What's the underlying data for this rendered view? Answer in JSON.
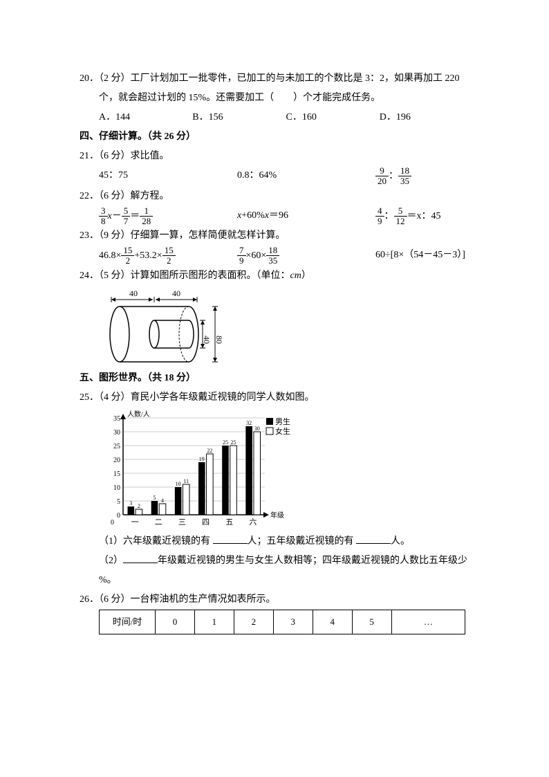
{
  "q20": {
    "num": "20",
    "line1": "．（2 分）工厂计划加工一批零件，已加工的与未加工的个数比是 3：2，如果再加工 220",
    "line2": "个，就会超过计划的 15%。还需要加工（　　）个才能完成任务。",
    "optA": "A．144",
    "optB": "B．156",
    "optC": "C．160",
    "optD": "D．196"
  },
  "sec4": "四、仔细计算。（共 26 分）",
  "q21": {
    "head": "21．（6 分）求比值。",
    "a": "45：75",
    "b": "0.8：64%",
    "c_left_n": "9",
    "c_left_d": "20",
    "c_right_n": "18",
    "c_right_d": "35"
  },
  "q22": {
    "head": "22．（6 分）解方程。",
    "a_l_n": "3",
    "a_l_d": "8",
    "a_m_n": "5",
    "a_m_d": "7",
    "a_r_n": "1",
    "a_r_d": "28",
    "b": "x+60%x＝96",
    "c_l_n": "4",
    "c_l_d": "9",
    "c_r_n": "5",
    "c_r_d": "12",
    "c_tail": "＝x：45"
  },
  "q23": {
    "head": "23．（9 分）仔细算一算，怎样简便就怎样计算。",
    "a_pre": "46.8×",
    "a1n": "15",
    "a1d": "2",
    "a_mid": "+53.2×",
    "a2n": "15",
    "a2d": "2",
    "b1n": "7",
    "b1d": "9",
    "b_mid": "×60×",
    "b2n": "18",
    "b2d": "35",
    "c": "60÷[8×（54－45－3）]"
  },
  "q24": {
    "head": "24．（5 分）计算如图所示图形的表面积。（单位：",
    "unit": "cm",
    "tail": "）",
    "dims": {
      "d1": "40",
      "d2": "40",
      "h1": "40",
      "h2": "80"
    }
  },
  "sec5": "五、图形世界。（共 18 分）",
  "q25": {
    "head": "25．（4 分）育民小学各年级戴近视镜的同学人数如图。",
    "chart": {
      "ylabel": "人数/人",
      "xlabel": "年级",
      "legend_boy": "男生",
      "legend_girl": "女生",
      "categories": [
        "一",
        "二",
        "三",
        "四",
        "五",
        "六"
      ],
      "boys": [
        3,
        5,
        10,
        19,
        25,
        32
      ],
      "girls": [
        2,
        4,
        11,
        22,
        25,
        30
      ],
      "ymax": 35,
      "ystep": 5,
      "bar_boy_color": "#000000",
      "bar_girl_color": "#ffffff",
      "grid_color": "#cccccc"
    },
    "sub1": "（1）六年级戴近视镜的有 ",
    "sub1b": "人；五年级戴近视镜的有 ",
    "sub1c": "人。",
    "sub2a": "（2）",
    "sub2b": "年级戴近视镜的男生与女生人数相等；四年级戴近视镜的人数比五年级少",
    "sub2c": "%。"
  },
  "q26": {
    "head": "26．（6 分）一台榨油机的生产情况如表所示。",
    "headers": [
      "时间/时",
      "0",
      "1",
      "2",
      "3",
      "4",
      "5",
      "…"
    ]
  }
}
